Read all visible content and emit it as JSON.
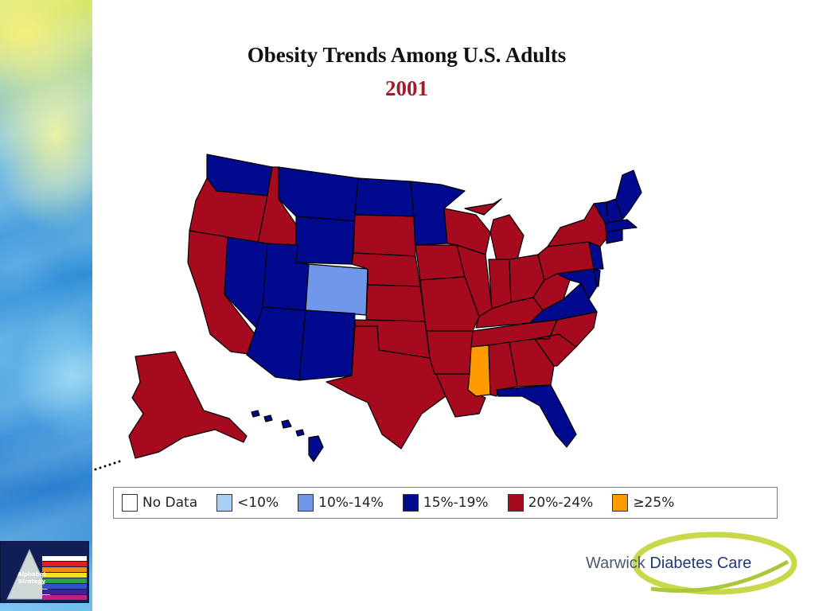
{
  "title": "Obesity Trends Among U.S. Adults",
  "year": "2001",
  "colors": {
    "no_data": "#ffffff",
    "under10": "#a9cdf4",
    "r10_14": "#6f97ea",
    "r15_19": "#010a8e",
    "r20_24": "#a50a1f",
    "r25plus": "#ff9a00",
    "title_year": "#a31a2a"
  },
  "legend": [
    {
      "label": "No Data",
      "color": "#ffffff"
    },
    {
      "label": "<10%",
      "color": "#a9cdf4"
    },
    {
      "label": "10%-14%",
      "color": "#6f97ea"
    },
    {
      "label": "15%-19%",
      "color": "#010a8e"
    },
    {
      "label": "20%-24%",
      "color": "#a50a1f"
    },
    {
      "label": "≥25%",
      "color": "#ff9a00"
    }
  ],
  "state_categories": {
    "15%-19%": [
      "Washington",
      "Montana",
      "North Dakota",
      "Minnesota",
      "Wyoming",
      "Nevada",
      "Utah",
      "Arizona",
      "New Mexico",
      "Florida",
      "Virginia",
      "Maryland",
      "Delaware",
      "New Jersey",
      "Connecticut",
      "Rhode Island",
      "Massachusetts",
      "Vermont",
      "New Hampshire",
      "Maine",
      "Hawaii"
    ],
    "10%-14%": [
      "Colorado"
    ],
    "≥25%": [
      "Mississippi"
    ],
    "20%-24%": [
      "Oregon",
      "Idaho",
      "California",
      "South Dakota",
      "Nebraska",
      "Kansas",
      "Oklahoma",
      "Texas",
      "Iowa",
      "Missouri",
      "Arkansas",
      "Louisiana",
      "Wisconsin",
      "Illinois",
      "Michigan",
      "Indiana",
      "Ohio",
      "Kentucky",
      "Tennessee",
      "Alabama",
      "Georgia",
      "South Carolina",
      "North Carolina",
      "West Virginia",
      "Pennsylvania",
      "New York",
      "Alaska"
    ]
  },
  "badge": {
    "label_line1": "Alphabet",
    "label_line2": "Strategy"
  },
  "logo": {
    "word1": "Warwick",
    "word2": "Diabetes Care"
  }
}
